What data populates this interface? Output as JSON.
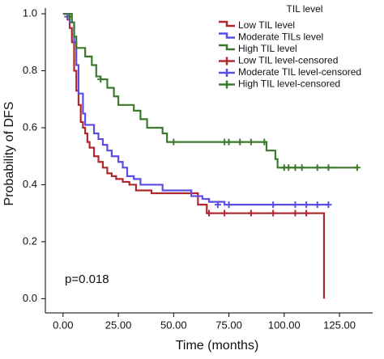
{
  "chart_data": {
    "type": "line",
    "step": true,
    "xlabel": "Time (months)",
    "ylabel": "Probability of DFS",
    "annotation": "p=0.018",
    "legend_title": "TIL level",
    "legend_position": "upper right",
    "xlim": [
      -8,
      140
    ],
    "ylim": [
      -0.05,
      1.02
    ],
    "xticks": [
      {
        "value": 0,
        "label": "0.00"
      },
      {
        "value": 25,
        "label": "25.00"
      },
      {
        "value": 50,
        "label": "50.00"
      },
      {
        "value": 75,
        "label": "75.00"
      },
      {
        "value": 100,
        "label": "100.00"
      },
      {
        "value": 125,
        "label": "125.00"
      }
    ],
    "yticks": [
      {
        "value": 0,
        "label": "0.0"
      },
      0.2,
      0.4,
      0.6,
      0.8,
      {
        "value": 1,
        "label": "1.0"
      }
    ],
    "series": [
      {
        "name": "Low TIL level",
        "color": "#b0282e",
        "x": [
          0,
          2,
          3,
          4,
          5,
          6,
          7,
          8,
          9,
          10,
          11,
          12,
          14,
          16,
          18,
          20,
          22,
          24,
          27,
          30,
          33,
          40,
          61,
          65,
          118,
          118
        ],
        "values": [
          1.0,
          0.98,
          0.95,
          0.9,
          0.8,
          0.73,
          0.68,
          0.62,
          0.6,
          0.58,
          0.55,
          0.53,
          0.5,
          0.48,
          0.46,
          0.44,
          0.43,
          0.42,
          0.41,
          0.4,
          0.38,
          0.37,
          0.33,
          0.3,
          0.3,
          0.0
        ]
      },
      {
        "name": "Moderate TILs level",
        "color": "#5a4de6",
        "x": [
          0,
          3,
          5,
          6,
          7,
          9,
          10,
          14,
          16,
          18,
          20,
          22,
          25,
          27,
          29,
          32,
          35,
          45,
          58,
          63,
          66,
          73,
          120
        ],
        "values": [
          1.0,
          0.97,
          0.9,
          0.82,
          0.72,
          0.65,
          0.61,
          0.58,
          0.56,
          0.54,
          0.52,
          0.5,
          0.48,
          0.46,
          0.43,
          0.42,
          0.4,
          0.38,
          0.36,
          0.35,
          0.34,
          0.33,
          0.33
        ]
      },
      {
        "name": "High TIL level",
        "color": "#3b7a2c",
        "x": [
          0,
          4,
          5,
          6,
          10,
          13,
          15,
          17,
          20,
          23,
          25,
          32,
          35,
          38,
          45,
          47,
          92,
          96,
          97,
          133
        ],
        "values": [
          1.0,
          0.97,
          0.92,
          0.88,
          0.85,
          0.82,
          0.78,
          0.77,
          0.74,
          0.71,
          0.68,
          0.66,
          0.63,
          0.6,
          0.58,
          0.55,
          0.52,
          0.49,
          0.46,
          0.46
        ]
      },
      {
        "name": "Low TIL level-censored",
        "color": "#b0282e",
        "marker": "+",
        "x": [
          66,
          73,
          85,
          95,
          105,
          110
        ],
        "values": [
          0.3,
          0.3,
          0.3,
          0.3,
          0.3,
          0.3
        ]
      },
      {
        "name": "Moderate TIL level-censored",
        "color": "#5a4de6",
        "marker": "+",
        "x": [
          2,
          70,
          75,
          95,
          105,
          110,
          115,
          120
        ],
        "values": [
          0.99,
          0.33,
          0.33,
          0.33,
          0.33,
          0.33,
          0.33,
          0.33
        ]
      },
      {
        "name": "High TIL level-censored",
        "color": "#3b7a2c",
        "marker": "+",
        "x": [
          3,
          17,
          50,
          73,
          75,
          80,
          85,
          91,
          100,
          102,
          105,
          108,
          115,
          120,
          133
        ],
        "values": [
          0.99,
          0.77,
          0.55,
          0.55,
          0.55,
          0.55,
          0.55,
          0.55,
          0.46,
          0.46,
          0.46,
          0.46,
          0.46,
          0.46,
          0.46
        ]
      }
    ]
  }
}
